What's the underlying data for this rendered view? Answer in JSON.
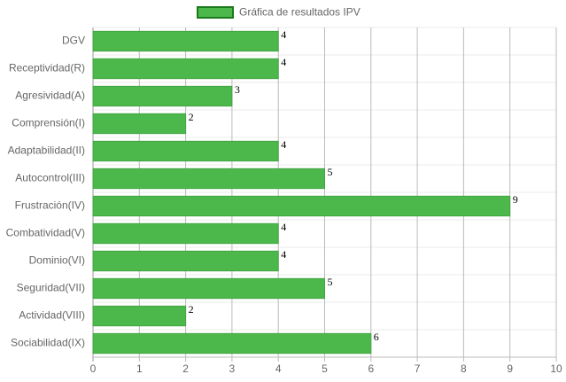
{
  "chart_data": {
    "type": "bar",
    "orientation": "horizontal",
    "categories": [
      "DGV",
      "Receptividad(R)",
      "Agresividad(A)",
      "Comprensión(I)",
      "Adaptabilidad(II)",
      "Autocontrol(III)",
      "Frustración(IV)",
      "Combatividad(V)",
      "Dominio(VI)",
      "Seguridad(VII)",
      "Actividad(VIII)",
      "Sociabilidad(IX)"
    ],
    "series": [
      {
        "name": "Gráfica de resultados IPV",
        "color": "#4cb84c",
        "values": [
          4,
          4,
          3,
          2,
          4,
          5,
          9,
          4,
          4,
          5,
          2,
          6
        ]
      }
    ],
    "xlim": [
      0,
      10
    ],
    "xticks": [
      0,
      1,
      2,
      3,
      4,
      5,
      6,
      7,
      8,
      9,
      10
    ],
    "grid": true,
    "legend": "top"
  }
}
